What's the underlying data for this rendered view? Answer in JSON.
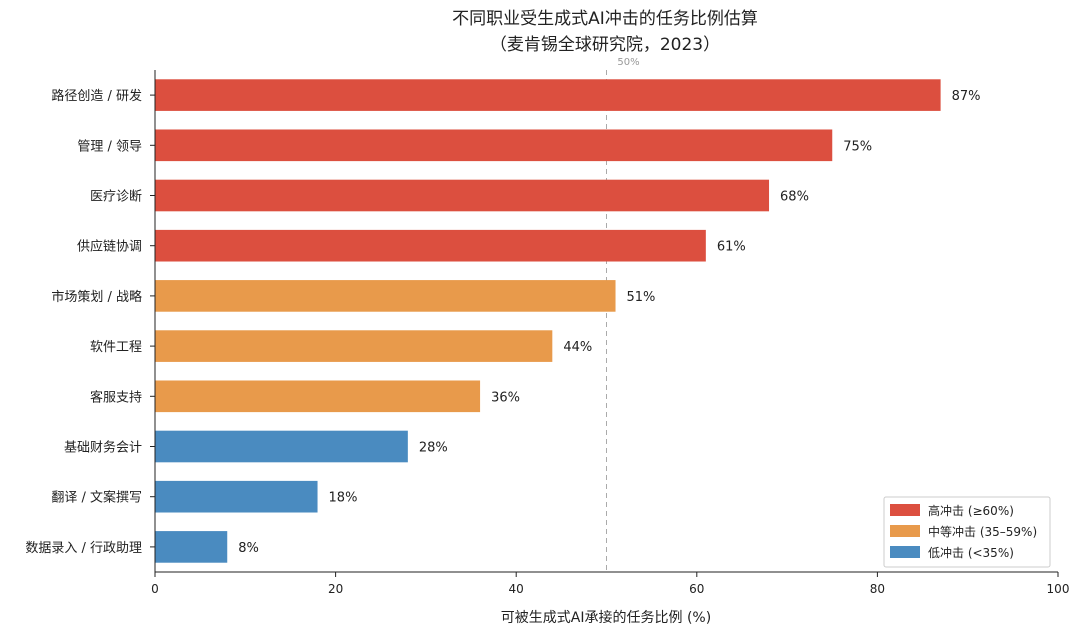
{
  "chart_data": {
    "type": "bar",
    "orientation": "horizontal",
    "title": "不同职业受生成式AI冲击的任务比例估算",
    "subtitle": "（麦肯锡全球研究院，2023）",
    "xlabel": "可被生成式AI承接的任务比例 (%)",
    "ylabel": "",
    "xlim": [
      0,
      100
    ],
    "xticks": [
      0,
      20,
      40,
      60,
      80,
      100
    ],
    "grid": false,
    "categories": [
      "路径创造 / 研发",
      "管理 / 领导",
      "医疗诊断",
      "供应链协调",
      "市场策划 / 战略",
      "软件工程",
      "客服支持",
      "基础财务会计",
      "翻译 / 文案撰写",
      "数据录入 / 行政助理"
    ],
    "values": [
      87,
      75,
      68,
      61,
      51,
      44,
      36,
      28,
      18,
      8
    ],
    "value_labels": [
      "87%",
      "75%",
      "68%",
      "61%",
      "51%",
      "44%",
      "36%",
      "28%",
      "18%",
      "8%"
    ],
    "groups": [
      "high",
      "high",
      "high",
      "high",
      "medium",
      "medium",
      "medium",
      "low",
      "low",
      "low"
    ],
    "reference_line": {
      "x": 50,
      "label": "50%",
      "style": "dashed",
      "color": "#aaaaaa"
    },
    "legend": {
      "position": "bottom-right",
      "items": [
        {
          "key": "high",
          "label": "高冲击 (≥60%)",
          "color": "#dc4f3f"
        },
        {
          "key": "medium",
          "label": "中等冲击 (35–59%)",
          "color": "#e89a4b"
        },
        {
          "key": "low",
          "label": "低冲击 (<35%)",
          "color": "#4a8bc0"
        }
      ]
    }
  }
}
